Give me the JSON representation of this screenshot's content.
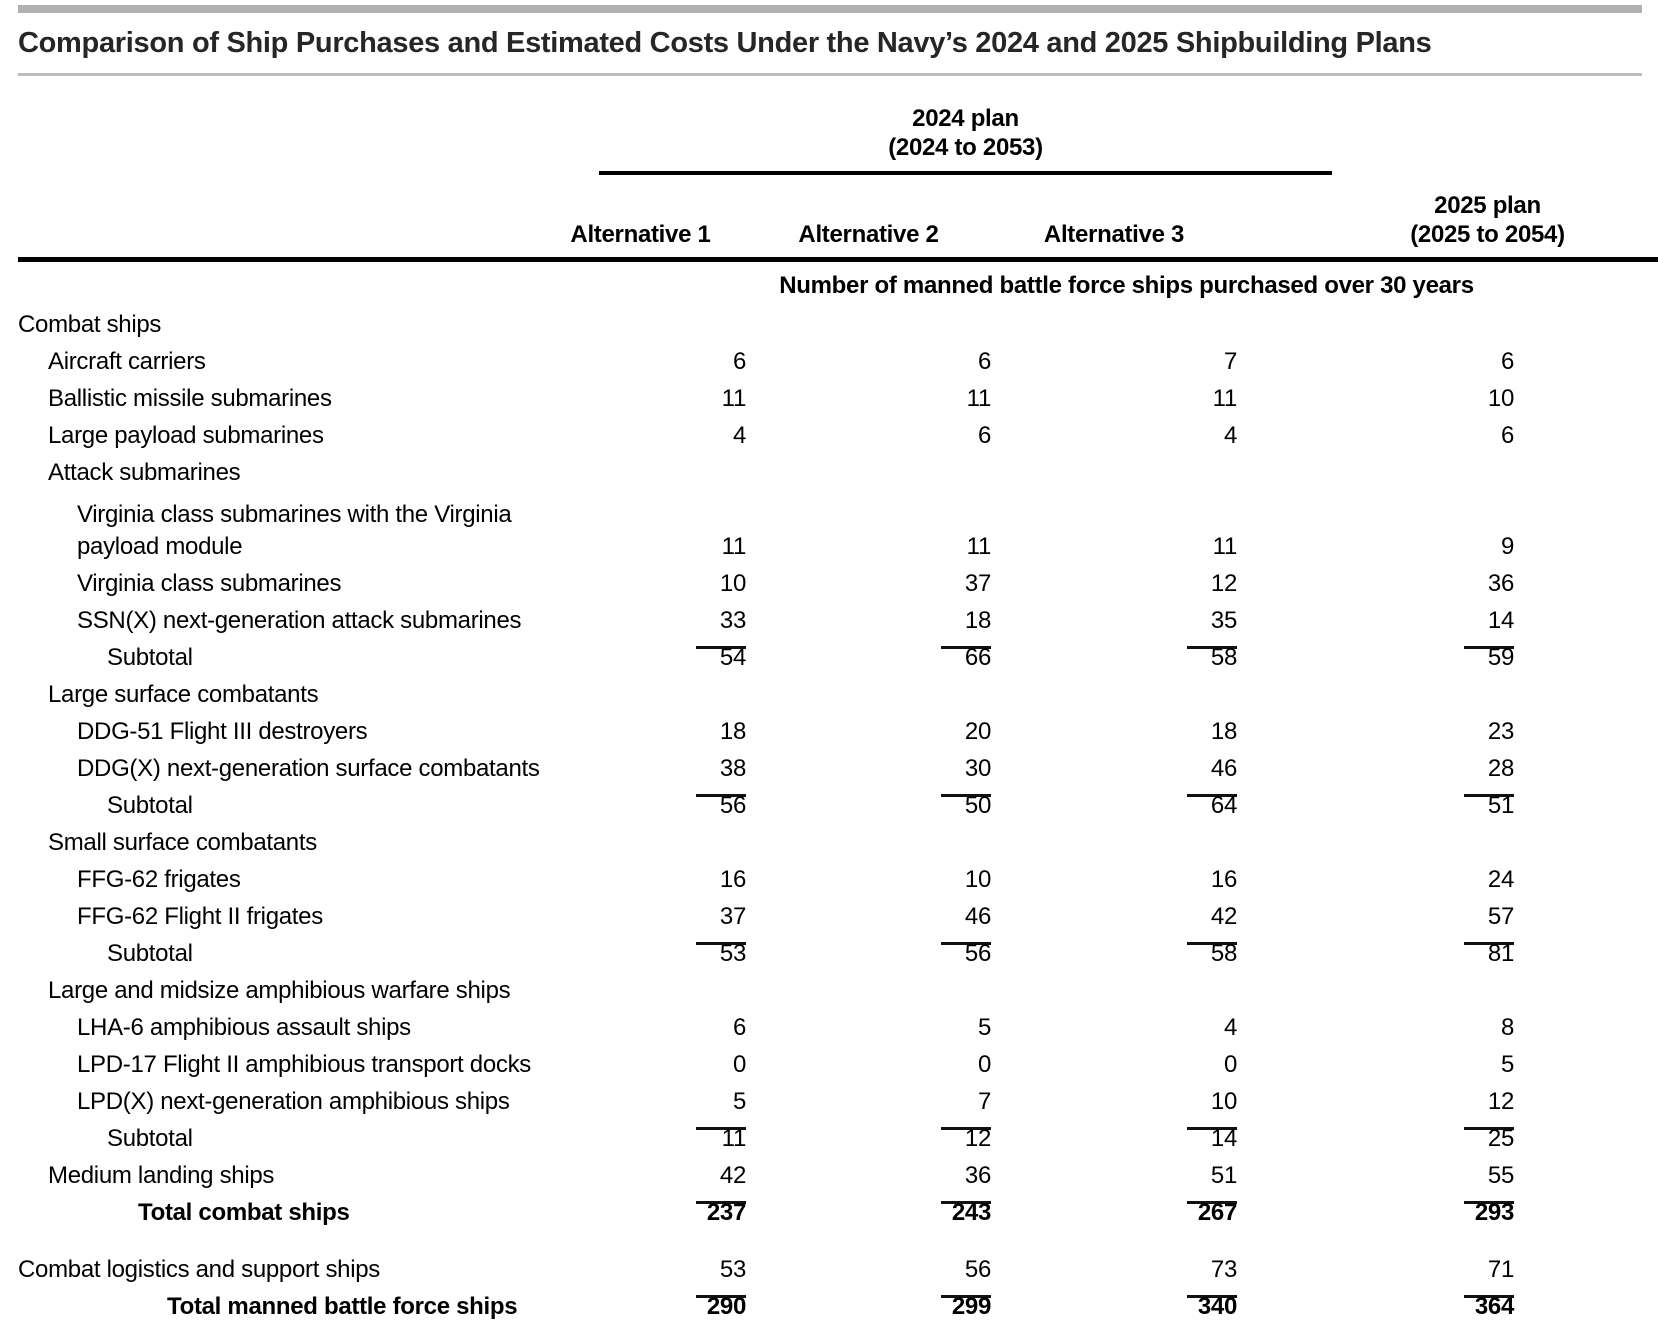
{
  "page_title": "Comparison of Ship Purchases and Estimated Costs Under the Navy’s 2024 and 2025 Shipbuilding Plans",
  "chart_data": {
    "type": "table",
    "title": "Comparison of Ship Purchases and Estimated Costs Under the Navy’s 2024 and 2025 Shipbuilding Plans",
    "column_groups": [
      {
        "label": "2024 plan\n(2024 to 2053)",
        "spans_columns": [
          "Alternative 1",
          "Alternative 2",
          "Alternative 3"
        ]
      }
    ],
    "columns": [
      "Alternative 1",
      "Alternative 2",
      "Alternative 3",
      "2025 plan\n(2025 to 2054)"
    ],
    "units_note": "Number of manned battle force ships purchased over 30 years",
    "rows": [
      {
        "label": "Combat ships",
        "indent": 0,
        "style": "group"
      },
      {
        "label": "Aircraft carriers",
        "indent": 1,
        "values": [
          "6",
          "6",
          "7",
          "6"
        ]
      },
      {
        "label": "Ballistic missile submarines",
        "indent": 1,
        "values": [
          "11",
          "11",
          "11",
          "10"
        ]
      },
      {
        "label": "Large payload submarines",
        "indent": 1,
        "values": [
          "4",
          "6",
          "4",
          "6"
        ]
      },
      {
        "label": "Attack submarines",
        "indent": 1,
        "style": "group"
      },
      {
        "label": "Virginia class submarines with the Virginia\npayload module",
        "indent": 2,
        "wrap": true,
        "values": [
          "11",
          "11",
          "11",
          "9"
        ]
      },
      {
        "label": "Virginia class submarines",
        "indent": 2,
        "values": [
          "10",
          "37",
          "12",
          "36"
        ]
      },
      {
        "label": "SSN(X) next-generation attack submarines",
        "indent": 2,
        "rule": true,
        "values": [
          "33",
          "18",
          "35",
          "14"
        ]
      },
      {
        "label": "Subtotal",
        "indent": 3,
        "values": [
          "54",
          "66",
          "58",
          "59"
        ]
      },
      {
        "label": "Large surface combatants",
        "indent": 1,
        "style": "group"
      },
      {
        "label": "DDG-51 Flight III destroyers",
        "indent": 2,
        "values": [
          "18",
          "20",
          "18",
          "23"
        ]
      },
      {
        "label": "DDG(X) next-generation surface combatants",
        "indent": 2,
        "rule": true,
        "values": [
          "38",
          "30",
          "46",
          "28"
        ]
      },
      {
        "label": "Subtotal",
        "indent": 3,
        "values": [
          "56",
          "50",
          "64",
          "51"
        ]
      },
      {
        "label": "Small surface combatants",
        "indent": 1,
        "style": "group"
      },
      {
        "label": "FFG-62 frigates",
        "indent": 2,
        "values": [
          "16",
          "10",
          "16",
          "24"
        ]
      },
      {
        "label": "FFG-62 Flight II frigates",
        "indent": 2,
        "rule": true,
        "values": [
          "37",
          "46",
          "42",
          "57"
        ]
      },
      {
        "label": "Subtotal",
        "indent": 3,
        "values": [
          "53",
          "56",
          "58",
          "81"
        ]
      },
      {
        "label": "Large and midsize amphibious warfare ships",
        "indent": 1,
        "style": "group"
      },
      {
        "label": "LHA-6 amphibious assault ships",
        "indent": 2,
        "values": [
          "6",
          "5",
          "4",
          "8"
        ]
      },
      {
        "label": "LPD-17 Flight II amphibious transport docks",
        "indent": 2,
        "values": [
          "0",
          "0",
          "0",
          "5"
        ]
      },
      {
        "label": "LPD(X) next-generation amphibious ships",
        "indent": 2,
        "rule": true,
        "values": [
          "5",
          "7",
          "10",
          "12"
        ]
      },
      {
        "label": "Subtotal",
        "indent": 3,
        "values": [
          "11",
          "12",
          "14",
          "25"
        ]
      },
      {
        "label": "Medium landing ships",
        "indent": 1,
        "rule": true,
        "values": [
          "42",
          "36",
          "51",
          "55"
        ]
      },
      {
        "label": "Total combat ships",
        "indent": 4,
        "style": "total",
        "values": [
          "237",
          "243",
          "267",
          "293"
        ]
      },
      {
        "label": "Combat logistics and support ships",
        "indent": 0,
        "rule": true,
        "gap": true,
        "values": [
          "53",
          "56",
          "73",
          "71"
        ]
      },
      {
        "label": "Total manned battle force ships",
        "indent": 5,
        "style": "total",
        "values": [
          "290",
          "299",
          "340",
          "364"
        ]
      }
    ],
    "colors": {
      "text": "#000000",
      "title": "#262626",
      "top_bar": "#b0b0b3",
      "title_rule": "#bdbdbd",
      "table_rules": "#000000"
    }
  }
}
